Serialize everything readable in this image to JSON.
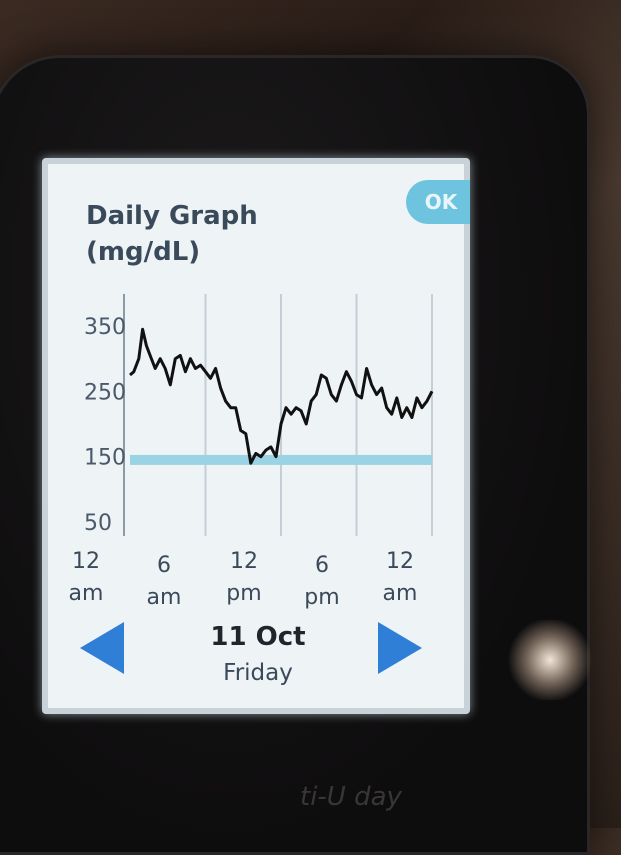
{
  "screen": {
    "title_line1": "Daily Graph",
    "title_line2": "(mg/dL)",
    "ok_label": "OK"
  },
  "chart_data": {
    "type": "line",
    "title": "Daily Graph (mg/dL)",
    "ylabel": "mg/dL",
    "yticks": [
      350,
      250,
      150,
      50
    ],
    "ylim": [
      0,
      400
    ],
    "xlim": [
      0,
      24
    ],
    "xtick_labels": [
      {
        "top": "12",
        "bottom": "am"
      },
      {
        "top": "6",
        "bottom": "am"
      },
      {
        "top": "12",
        "bottom": "pm"
      },
      {
        "top": "6",
        "bottom": "pm"
      },
      {
        "top": "12",
        "bottom": "am"
      }
    ],
    "target_line": 145,
    "target_color": "#9ad3e3",
    "line_color": "#111111",
    "grid": true,
    "series": [
      {
        "x": [
          0,
          0.3,
          0.7,
          1.0,
          1.3,
          1.6,
          2.0,
          2.4,
          2.8,
          3.2,
          3.6,
          4.0,
          4.4,
          4.8,
          5.2,
          5.6,
          6.0,
          6.4,
          6.8,
          7.2,
          7.6,
          8.0,
          8.4,
          8.8,
          9.2,
          9.6,
          10.0,
          10.4,
          10.8,
          11.2,
          11.6,
          12.0,
          12.4,
          12.8,
          13.2,
          13.6,
          14.0,
          14.4,
          14.8,
          15.2,
          15.6,
          16.0,
          16.4,
          16.8,
          17.2,
          17.6,
          18.0,
          18.4,
          18.8,
          19.2,
          19.6,
          20.0,
          20.4,
          20.8,
          21.2,
          21.6,
          22.0,
          22.4,
          22.8,
          23.2,
          23.6,
          24.0
        ],
        "y": [
          275,
          280,
          300,
          345,
          320,
          305,
          285,
          300,
          285,
          260,
          300,
          305,
          280,
          300,
          285,
          290,
          280,
          270,
          285,
          255,
          235,
          225,
          225,
          190,
          185,
          140,
          155,
          150,
          160,
          165,
          150,
          200,
          225,
          215,
          225,
          220,
          200,
          235,
          245,
          275,
          270,
          245,
          235,
          260,
          280,
          265,
          245,
          240,
          285,
          260,
          245,
          255,
          225,
          215,
          240,
          210,
          225,
          210,
          240,
          225,
          235,
          250
        ]
      }
    ]
  },
  "footer": {
    "date": "11 Oct",
    "day": "Friday"
  },
  "device": {
    "brand": "ti-U day"
  },
  "colors": {
    "screen_bg": "#eef3f6",
    "ok_button": "#6ec3de",
    "nav_arrow": "#2f7fd6",
    "title_text": "#3a4a5a"
  },
  "icons": {
    "prev": "left-triangle-arrow-icon",
    "next": "right-triangle-arrow-icon"
  }
}
